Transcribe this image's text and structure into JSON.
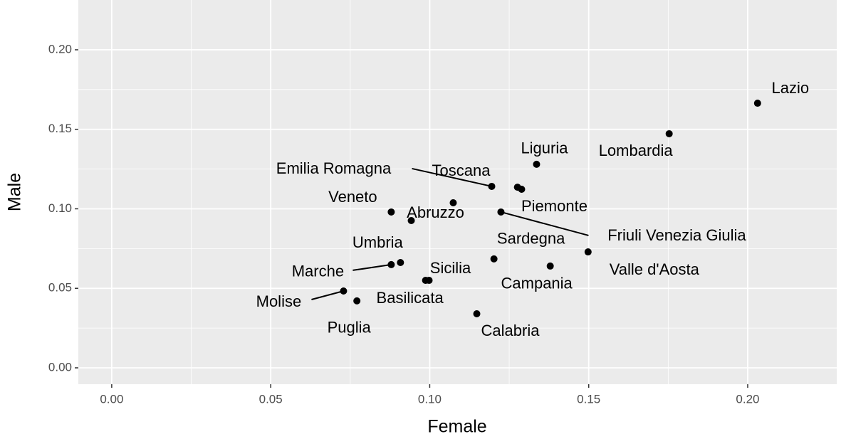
{
  "chart_data": {
    "type": "scatter",
    "xlabel": "Female",
    "ylabel": "Male",
    "labels": [
      "Lazio",
      "Lombardia",
      "Liguria",
      "Emilia Romagna",
      "Toscana",
      null,
      "Piemonte",
      "Friuli Venezia Giulia",
      "Veneto",
      "Abruzzo",
      "Valle d'Aosta",
      "Sardegna",
      "Campania",
      "Umbria",
      "Marche",
      "Sicilia",
      "Basilicata",
      "Puglia",
      "Molise",
      "Calabria"
    ],
    "x": [
      0.2031,
      0.1753,
      0.1336,
      0.1195,
      0.1074,
      0.1276,
      0.1289,
      0.1224,
      0.0879,
      0.0942,
      0.1498,
      0.1202,
      0.1379,
      0.0908,
      0.0879,
      0.0998,
      0.0987,
      0.0771,
      0.0729,
      0.1148
    ],
    "y": [
      0.1664,
      0.1472,
      0.128,
      0.1141,
      0.1038,
      0.1136,
      0.1123,
      0.098,
      0.098,
      0.0926,
      0.0729,
      0.0685,
      0.064,
      0.0662,
      0.0649,
      0.055,
      0.055,
      0.0421,
      0.0483,
      0.034
    ],
    "color": "#000000",
    "xlim": [
      -0.0105,
      0.228
    ],
    "ylim": [
      -0.0103,
      0.2313
    ],
    "xticks": [
      {
        "value": 0,
        "label": "0.00"
      },
      0.05,
      {
        "value": 0.1,
        "label": "0.10"
      },
      0.15,
      {
        "value": 0.2,
        "label": "0.20"
      }
    ],
    "yticks": [
      {
        "value": 0,
        "label": "0.00"
      },
      0.05,
      {
        "value": 0.1,
        "label": "0.10"
      },
      0.15,
      {
        "value": 0.2,
        "label": "0.20"
      }
    ],
    "grid": true
  }
}
